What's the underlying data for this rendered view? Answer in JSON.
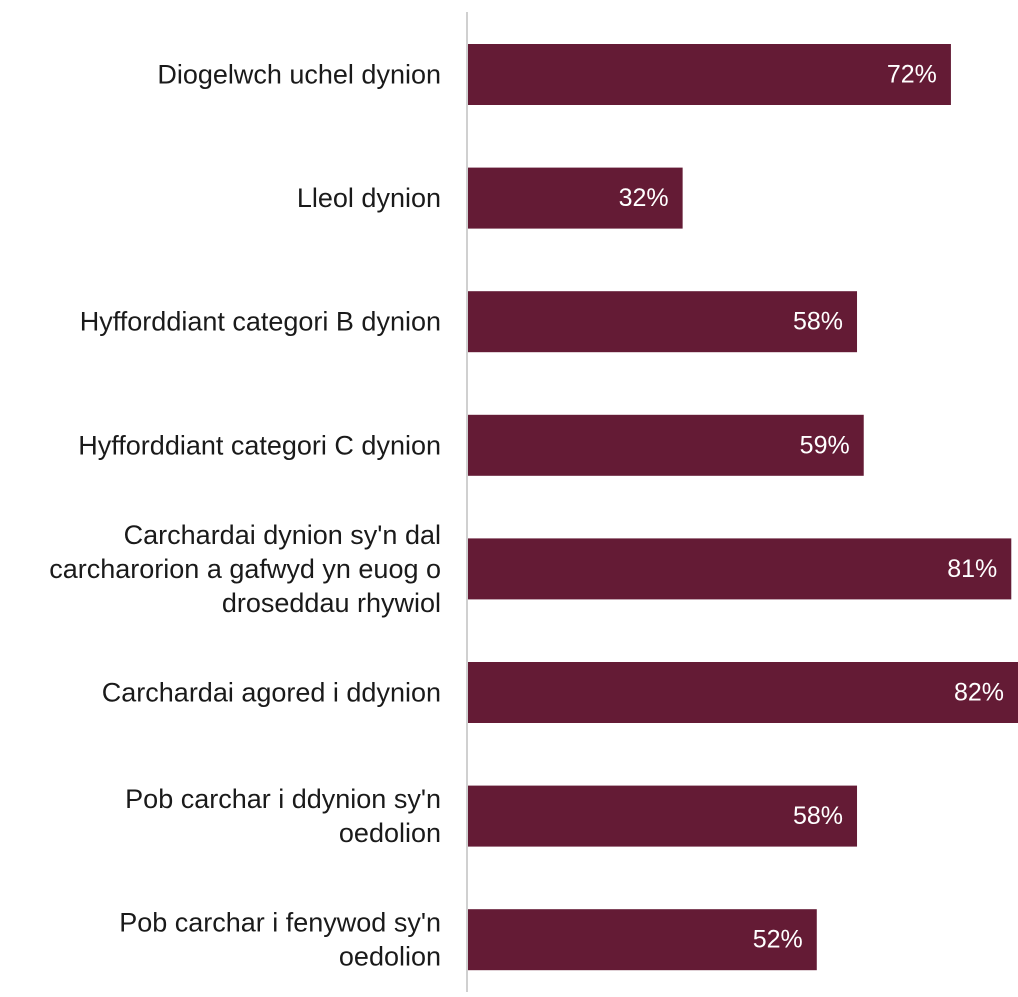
{
  "chart_data": {
    "type": "bar",
    "orientation": "horizontal",
    "categories": [
      [
        "Diogelwch uchel dynion"
      ],
      [
        "Lleol dynion"
      ],
      [
        "Hyfforddiant categori B dynion"
      ],
      [
        "Hyfforddiant categori C dynion"
      ],
      [
        "Carchardai dynion sy'n dal",
        "carcharorion a gafwyd yn euog o",
        "droseddau rhywiol"
      ],
      [
        "Carchardai agored i ddynion"
      ],
      [
        "Pob carchar i ddynion sy'n",
        "oedolion"
      ],
      [
        "Pob carchar i fenywod sy'n",
        "oedolion"
      ]
    ],
    "values": [
      72,
      32,
      58,
      59,
      81,
      82,
      58,
      52
    ],
    "value_labels": [
      "72%",
      "32%",
      "58%",
      "59%",
      "81%",
      "82%",
      "58%",
      "52%"
    ],
    "unit": "%",
    "xlim": [
      0,
      82
    ],
    "grid": false,
    "legend": "none",
    "colors": {
      "bar": "#641b35",
      "axis": "#d0d0d0",
      "label": "#1a1a1a",
      "value_label": "#ffffff"
    }
  }
}
